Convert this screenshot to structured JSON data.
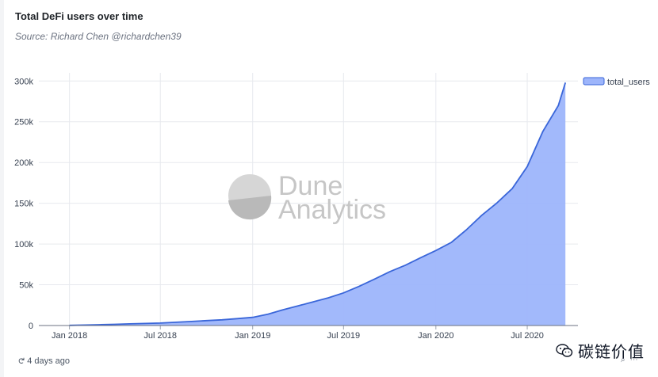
{
  "header": {
    "title": "Total DeFi users over time",
    "subtitle": "Source: Richard Chen @richardchen39"
  },
  "watermark": {
    "line1": "Dune",
    "line2": "Analytics"
  },
  "footer": {
    "refresh_icon": "refresh-icon",
    "updated_label": "4 days ago"
  },
  "badge": {
    "icon": "wechat-icon",
    "name": "碳链价值"
  },
  "colors": {
    "area_fill": "#9db5fb",
    "line": "#3a66d9",
    "grid": "#e7e9ee",
    "axis": "#6b7280",
    "watermark": "#c4c4c4"
  },
  "chart_data": {
    "type": "area",
    "title": "Total DeFi users over time",
    "xlabel": "",
    "ylabel": "",
    "x_ticks": [
      "Jan 2018",
      "Jul 2018",
      "Jan 2019",
      "Jul 2019",
      "Jan 2020",
      "Jul 2020"
    ],
    "y_ticks": [
      "0",
      "50k",
      "100k",
      "150k",
      "200k",
      "250k",
      "300k"
    ],
    "ylim": [
      0,
      310000
    ],
    "xlim": [
      "2017-11-01",
      "2020-10-10"
    ],
    "grid": true,
    "legend_position": "top-right",
    "series": [
      {
        "name": "total_users",
        "x": [
          "2018-01-01",
          "2018-02-01",
          "2018-03-01",
          "2018-04-01",
          "2018-05-01",
          "2018-06-01",
          "2018-07-01",
          "2018-08-01",
          "2018-09-01",
          "2018-10-01",
          "2018-11-01",
          "2018-12-01",
          "2019-01-01",
          "2019-02-01",
          "2019-03-01",
          "2019-04-01",
          "2019-05-01",
          "2019-06-01",
          "2019-07-01",
          "2019-08-01",
          "2019-09-01",
          "2019-10-01",
          "2019-11-01",
          "2019-12-01",
          "2020-01-01",
          "2020-02-01",
          "2020-03-01",
          "2020-04-01",
          "2020-05-01",
          "2020-06-01",
          "2020-07-01",
          "2020-08-01",
          "2020-09-01",
          "2020-09-15"
        ],
        "values": [
          200,
          600,
          1000,
          1500,
          2000,
          2500,
          3000,
          4000,
          5000,
          6000,
          7000,
          8500,
          10000,
          14000,
          19000,
          24000,
          29000,
          34000,
          40000,
          48000,
          57000,
          66000,
          74000,
          83000,
          92000,
          102000,
          117000,
          135000,
          150000,
          168000,
          195000,
          238000,
          270000,
          298000
        ]
      }
    ]
  }
}
